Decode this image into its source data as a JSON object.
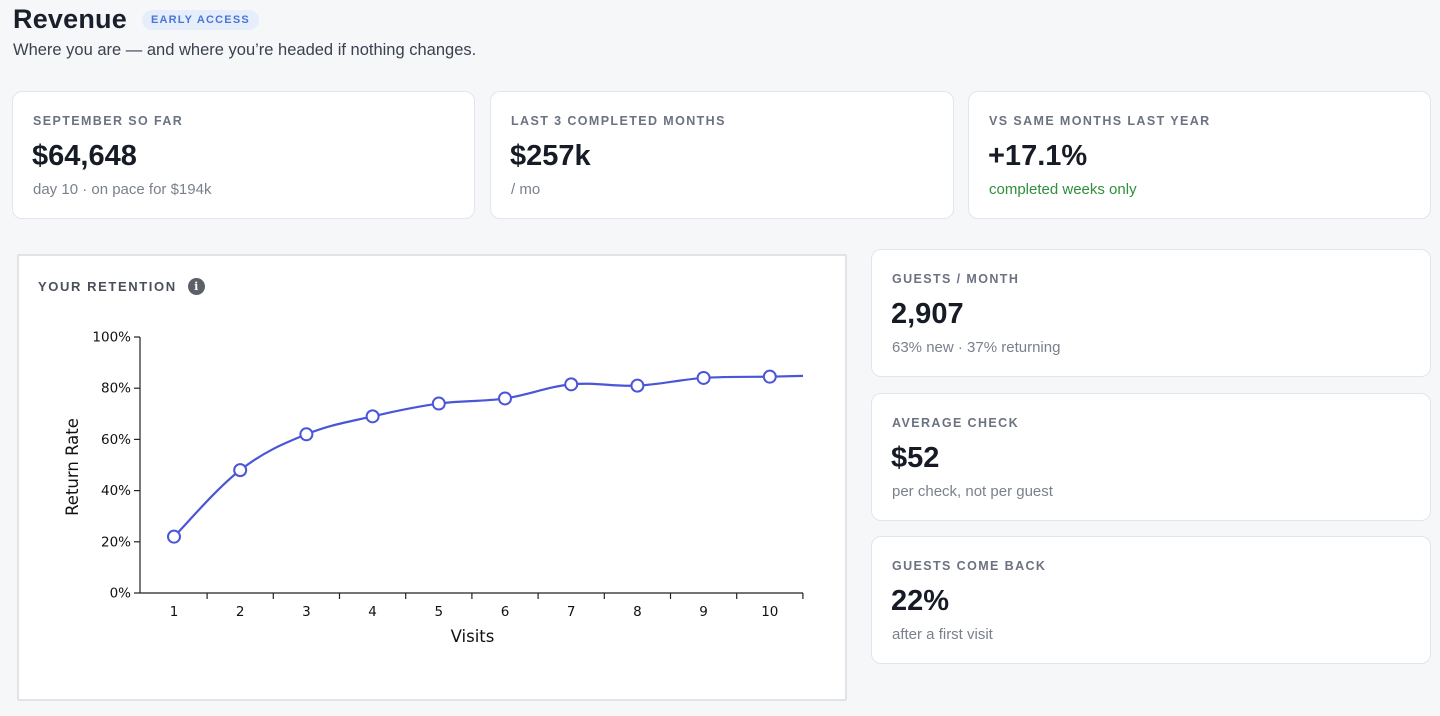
{
  "header": {
    "title": "Revenue",
    "badge": "EARLY ACCESS",
    "subtitle": "Where you are — and where you’re headed if nothing changes."
  },
  "top_stats": [
    {
      "label": "SEPTEMBER SO FAR",
      "value": "$64,648",
      "sub": "day 10 · on pace for $194k"
    },
    {
      "label": "LAST 3 COMPLETED MONTHS",
      "value": "$257k",
      "sub": "/ mo"
    },
    {
      "label": "VS SAME MONTHS LAST YEAR",
      "value": "+17.1%",
      "sub": "completed weeks only"
    }
  ],
  "side_stats": [
    {
      "label": "GUESTS / MONTH",
      "value": "2,907",
      "sub": "63% new · 37% returning"
    },
    {
      "label": "AVERAGE CHECK",
      "value": "$52",
      "sub": "per check, not per guest"
    },
    {
      "label": "GUESTS COME BACK",
      "value": "22%",
      "sub": "after a first visit"
    }
  ],
  "colors": {
    "positive": "#2f8f3c",
    "line": "#4a55d8",
    "badge_bg": "#e6eefc",
    "badge_text": "#4a76d4"
  },
  "retention": {
    "title": "YOUR RETENTION",
    "info_icon": "info-icon"
  },
  "chart_data": {
    "type": "line",
    "xlabel": "Visits",
    "ylabel": "Return Rate",
    "x": [
      1,
      2,
      3,
      4,
      5,
      6,
      7,
      8,
      9,
      10
    ],
    "y": [
      22,
      48,
      62,
      69,
      74,
      76,
      81.5,
      81,
      84,
      84.5
    ],
    "y_ticks": [
      "0%",
      "20%",
      "40%",
      "60%",
      "80%",
      "100%"
    ],
    "ylim": [
      0,
      100
    ],
    "grid": false,
    "legend": "none"
  }
}
